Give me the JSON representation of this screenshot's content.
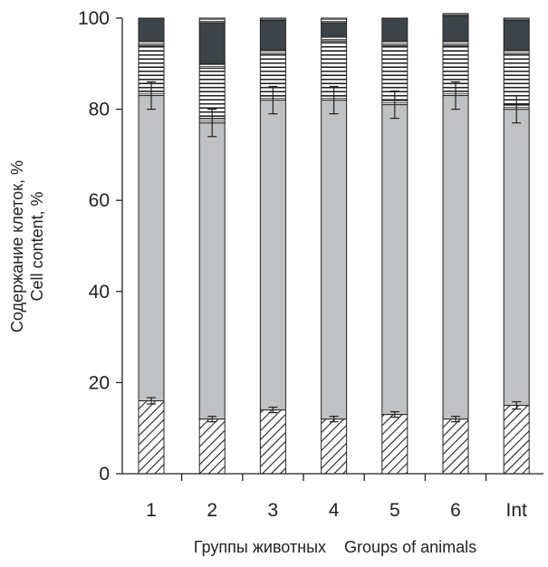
{
  "chart_data": {
    "type": "bar",
    "stacked": true,
    "categories": [
      "1",
      "2",
      "3",
      "4",
      "5",
      "6",
      "Int"
    ],
    "ylabel_lines": [
      "Содержание клеток, %",
      "Cell content, %"
    ],
    "xlabel": "Группы животных    Groups of animals",
    "ylim": [
      0,
      100
    ],
    "yticks": [
      0,
      20,
      40,
      60,
      80,
      100
    ],
    "grid": false,
    "series": [
      {
        "values": [
          16,
          12,
          14,
          12,
          13,
          12,
          15
        ],
        "error": [
          0.7,
          0.6,
          0.6,
          0.6,
          0.6,
          0.6,
          0.8
        ],
        "fill": "hatch-diagonal"
      },
      {
        "values": [
          67,
          65,
          68,
          70,
          68,
          71,
          65
        ],
        "error": [
          3,
          3,
          3,
          3,
          3,
          3,
          3
        ],
        "fill": "#c0c1c3"
      },
      {
        "values": [
          1,
          1,
          1,
          1,
          1,
          1,
          1
        ],
        "fill": "hatch-horizontal-fine"
      },
      {
        "values": [
          10,
          11,
          9,
          12,
          12,
          10,
          11
        ],
        "fill": "hatch-horizontal"
      },
      {
        "values": [
          1,
          1,
          1,
          1,
          1,
          1,
          1
        ],
        "fill": "hatch-horizontal-fine"
      },
      {
        "values": [
          5,
          9,
          6.5,
          3,
          5,
          5.5,
          6.5
        ],
        "fill": "#3d4448"
      },
      {
        "values": [
          0,
          1,
          0.5,
          1,
          0,
          0.5,
          0.5
        ],
        "fill": "hatch-horizontal-fine"
      }
    ],
    "colors": {
      "axis": "#222222",
      "bar_outline": "#222222",
      "gray": "#c0c1c3",
      "dark": "#3d4448"
    }
  }
}
